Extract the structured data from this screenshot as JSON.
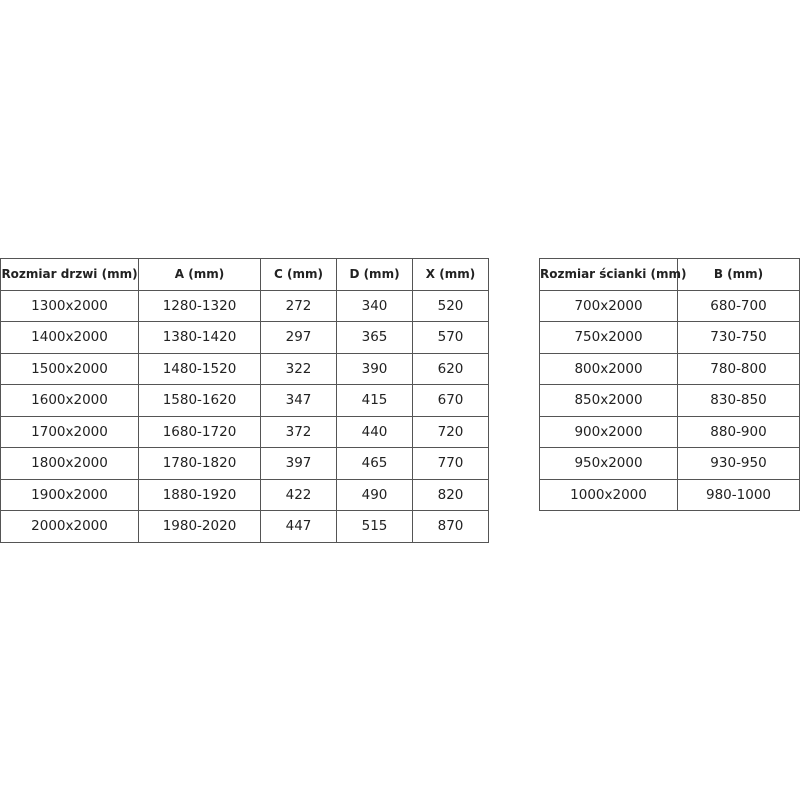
{
  "door_table": {
    "headers": [
      "Rozmiar drzwi (mm)",
      "A (mm)",
      "C (mm)",
      "D (mm)",
      "X (mm)"
    ],
    "rows": [
      [
        "1300x2000",
        "1280-1320",
        "272",
        "340",
        "520"
      ],
      [
        "1400x2000",
        "1380-1420",
        "297",
        "365",
        "570"
      ],
      [
        "1500x2000",
        "1480-1520",
        "322",
        "390",
        "620"
      ],
      [
        "1600x2000",
        "1580-1620",
        "347",
        "415",
        "670"
      ],
      [
        "1700x2000",
        "1680-1720",
        "372",
        "440",
        "720"
      ],
      [
        "1800x2000",
        "1780-1820",
        "397",
        "465",
        "770"
      ],
      [
        "1900x2000",
        "1880-1920",
        "422",
        "490",
        "820"
      ],
      [
        "2000x2000",
        "1980-2020",
        "447",
        "515",
        "870"
      ]
    ]
  },
  "wall_table": {
    "headers": [
      "Rozmiar ścianki (mm)",
      "B (mm)"
    ],
    "rows": [
      [
        "700x2000",
        "680-700"
      ],
      [
        "750x2000",
        "730-750"
      ],
      [
        "800x2000",
        "780-800"
      ],
      [
        "850x2000",
        "830-850"
      ],
      [
        "900x2000",
        "880-900"
      ],
      [
        "950x2000",
        "930-950"
      ],
      [
        "1000x2000",
        "980-1000"
      ]
    ]
  }
}
